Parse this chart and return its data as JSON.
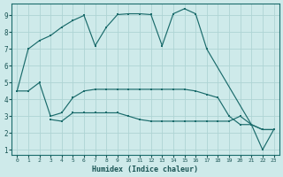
{
  "xlabel": "Humidex (Indice chaleur)",
  "bg_color": "#ceeaea",
  "grid_color": "#aed4d4",
  "line_color": "#1a6b6b",
  "xlim": [
    -0.5,
    23.5
  ],
  "ylim": [
    0.7,
    9.7
  ],
  "yticks": [
    1,
    2,
    3,
    4,
    5,
    6,
    7,
    8,
    9
  ],
  "xticks": [
    0,
    1,
    2,
    3,
    4,
    5,
    6,
    7,
    8,
    9,
    10,
    11,
    12,
    13,
    14,
    15,
    16,
    17,
    18,
    19,
    20,
    21,
    22,
    23
  ],
  "line1_x": [
    0,
    1,
    2,
    3,
    4,
    5,
    6,
    7,
    8,
    9,
    10,
    11,
    12,
    13,
    14,
    15,
    16,
    17,
    21,
    22,
    23
  ],
  "line1_y": [
    4.5,
    7.0,
    7.5,
    7.8,
    8.3,
    8.7,
    9.0,
    7.2,
    8.3,
    9.05,
    9.1,
    9.1,
    9.05,
    7.2,
    9.1,
    9.4,
    9.1,
    7.0,
    2.5,
    2.2,
    2.2
  ],
  "line2_x": [
    0,
    1,
    2,
    3,
    4,
    5,
    6,
    7,
    8,
    9,
    10,
    11,
    12,
    13,
    14,
    15,
    16,
    17,
    18,
    19,
    20,
    21,
    22,
    23
  ],
  "line2_y": [
    4.5,
    4.5,
    5.0,
    3.0,
    3.2,
    4.1,
    4.5,
    4.6,
    4.6,
    4.6,
    4.6,
    4.6,
    4.6,
    4.6,
    4.6,
    4.6,
    4.5,
    4.3,
    4.1,
    3.0,
    2.5,
    2.5,
    2.2,
    2.2
  ],
  "line3_x": [
    3,
    4,
    5,
    6,
    7,
    8,
    9,
    10,
    11,
    12,
    13,
    14,
    15,
    16,
    17,
    18,
    19,
    20,
    21,
    22,
    23
  ],
  "line3_y": [
    2.8,
    2.7,
    3.2,
    3.2,
    3.2,
    3.2,
    3.2,
    3.0,
    2.8,
    2.7,
    2.7,
    2.7,
    2.7,
    2.7,
    2.7,
    2.7,
    2.7,
    3.0,
    2.5,
    1.0,
    2.2
  ]
}
